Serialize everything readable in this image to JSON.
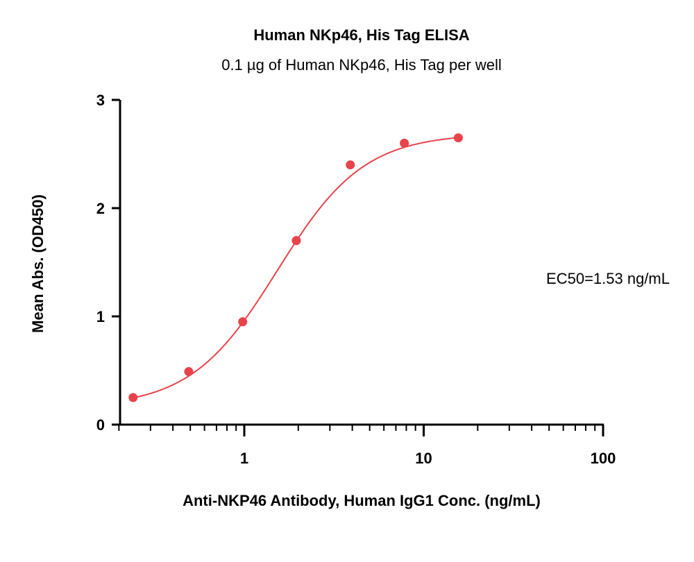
{
  "chart_data": {
    "type": "scatter",
    "title": "Human NKp46, His Tag ELISA",
    "subtitle": "0.1 µg of Human NKp46, His Tag per well",
    "xlabel": "Anti-NKP46 Antibody, Human IgG1 Conc. (ng/mL)",
    "ylabel": "Mean Abs. (OD450)",
    "x_scale": "log",
    "xlim": [
      0.2,
      100
    ],
    "ylim": [
      0,
      3
    ],
    "x_ticks": [
      1,
      10,
      100
    ],
    "x_tick_labels": [
      "1",
      "10",
      "100"
    ],
    "y_ticks": [
      0,
      1,
      2,
      3
    ],
    "y_tick_labels": [
      "0",
      "1",
      "2",
      "3"
    ],
    "grid": false,
    "legend": "none",
    "series": [
      {
        "x": [
          0.24,
          0.49,
          0.98,
          1.95,
          3.9,
          7.8,
          15.6
        ],
        "y": [
          0.25,
          0.49,
          0.95,
          1.7,
          2.4,
          2.6,
          2.65
        ],
        "color": "#e8434b",
        "fit": {
          "model": "4PL",
          "bottom": 0.16,
          "top": 2.69,
          "ec50": 1.53,
          "hill": 1.8
        }
      }
    ],
    "annotations": [
      {
        "text": "EC50=1.53 ng/mL"
      }
    ]
  }
}
